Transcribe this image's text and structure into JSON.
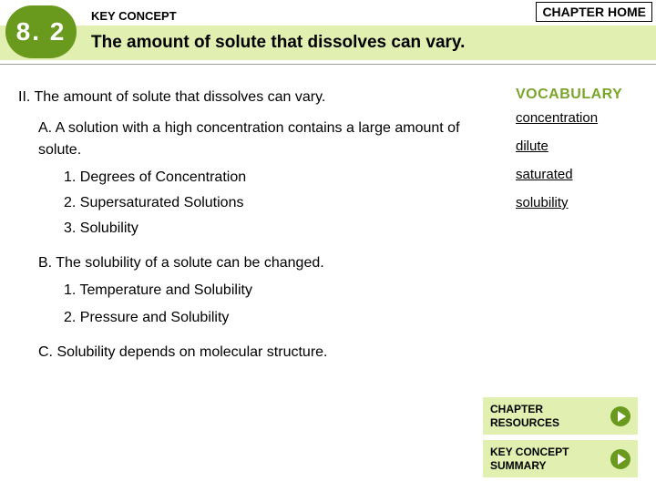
{
  "colors": {
    "accent_green": "#6a9a1d",
    "panel_green": "#e1efb1",
    "text": "#000000",
    "background": "#ffffff"
  },
  "header": {
    "badge_number": "8. 2",
    "key_concept_label": "KEY CONCEPT",
    "title": "The amount of solute that dissolves can vary.",
    "chapter_home_label": "CHAPTER HOME"
  },
  "outline": {
    "ii": "II. The amount of solute that dissolves can vary.",
    "a": "A. A solution with a high concentration contains a large amount of solute.",
    "a_items": [
      "1. Degrees of Concentration",
      "2. Supersaturated Solutions",
      "3. Solubility"
    ],
    "b": "B. The solubility of a solute can be changed.",
    "b_items": [
      "1. Temperature and Solubility",
      "2. Pressure and Solubility"
    ],
    "c": "C. Solubility depends on molecular structure."
  },
  "vocabulary": {
    "title": "VOCABULARY",
    "terms": [
      "concentration",
      "dilute",
      "saturated",
      "solubility"
    ]
  },
  "footer": {
    "chapter_resources": "CHAPTER\nRESOURCES",
    "key_concept_summary": "KEY CONCEPT\nSUMMARY"
  }
}
